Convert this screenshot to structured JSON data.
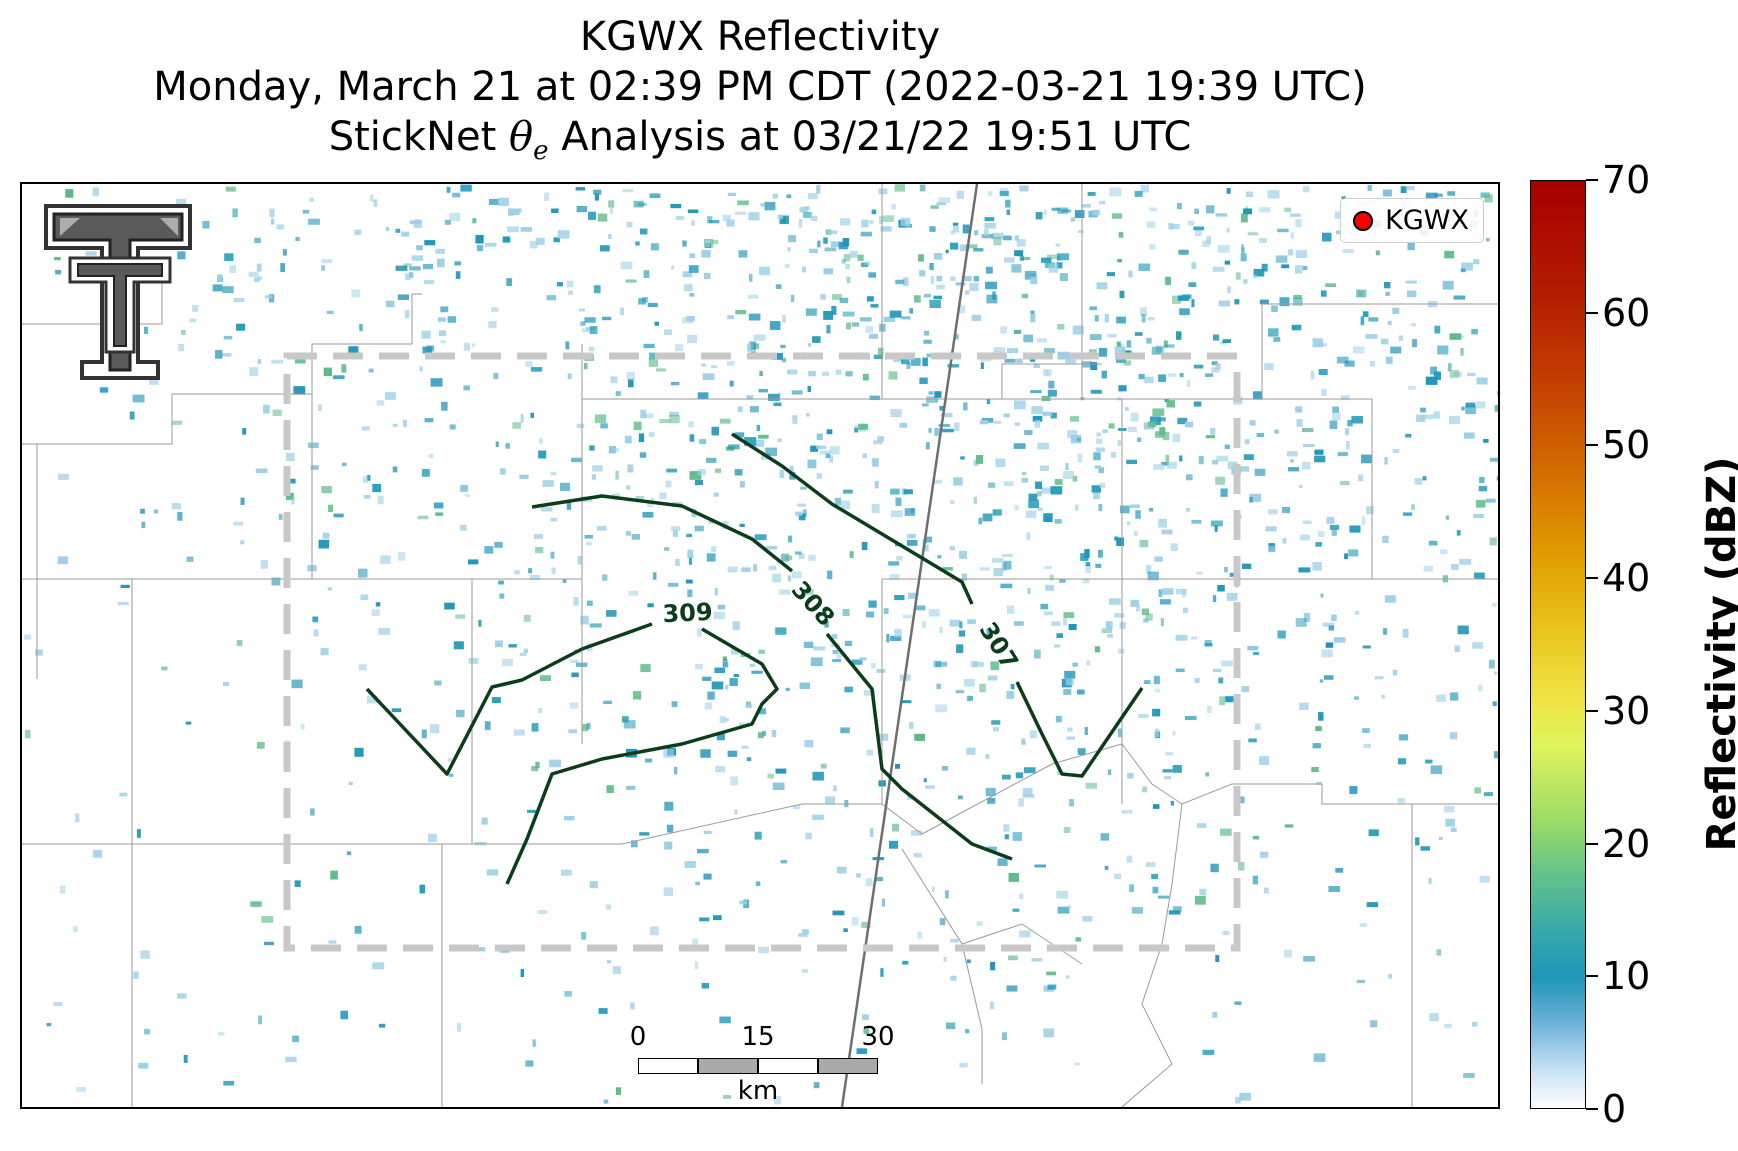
{
  "title": {
    "line1": "KGWX Reflectivity",
    "line2": "Monday, March 21 at 02:39 PM CDT (2022-03-21 19:39 UTC)",
    "line3_prefix": "StickNet ",
    "line3_symbol": "θ",
    "line3_subscript": "e",
    "line3_suffix": " Analysis at 03/21/22 19:51 UTC"
  },
  "legend": {
    "label": "KGWX",
    "marker_color": "#ff0000"
  },
  "colorbar": {
    "label": "Reflectivity (dBZ)",
    "ticks": [
      "0",
      "10",
      "20",
      "30",
      "40",
      "50",
      "60",
      "70"
    ],
    "range": [
      0,
      70
    ]
  },
  "contours": {
    "color": "#0b3d1a",
    "labels": [
      "309",
      "308",
      "307"
    ]
  },
  "scalebar": {
    "labels": [
      "0",
      "15",
      "30"
    ],
    "units": "km"
  },
  "colors": {
    "echo_primary": "#1f96b8",
    "echo_light": "#9ccfe6",
    "echo_green": "#5ab987",
    "domain_box": "#c8c8c8",
    "county_lines": "#9a9a9a"
  }
}
